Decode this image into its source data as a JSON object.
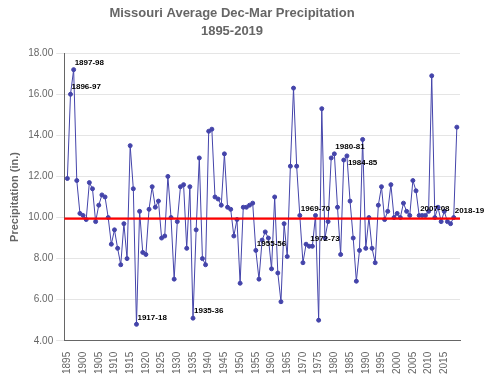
{
  "chart_data": {
    "type": "line",
    "title": "Missouri Average Dec-Mar Precipitation",
    "subtitle": "1895-2019",
    "y_label": "Precipitation (in.)",
    "x": [
      1895,
      1896,
      1897,
      1898,
      1899,
      1900,
      1901,
      1902,
      1903,
      1904,
      1905,
      1906,
      1907,
      1908,
      1909,
      1910,
      1911,
      1912,
      1913,
      1914,
      1915,
      1916,
      1917,
      1918,
      1919,
      1920,
      1921,
      1922,
      1923,
      1924,
      1925,
      1926,
      1927,
      1928,
      1929,
      1930,
      1931,
      1932,
      1933,
      1934,
      1935,
      1936,
      1937,
      1938,
      1939,
      1940,
      1941,
      1942,
      1943,
      1944,
      1945,
      1946,
      1947,
      1948,
      1949,
      1950,
      1951,
      1952,
      1953,
      1954,
      1955,
      1956,
      1957,
      1958,
      1959,
      1960,
      1961,
      1962,
      1963,
      1964,
      1965,
      1966,
      1967,
      1968,
      1969,
      1970,
      1971,
      1972,
      1973,
      1974,
      1975,
      1976,
      1977,
      1978,
      1979,
      1980,
      1981,
      1982,
      1983,
      1984,
      1985,
      1986,
      1987,
      1988,
      1989,
      1990,
      1991,
      1992,
      1993,
      1994,
      1995,
      1996,
      1997,
      1998,
      1999,
      2000,
      2001,
      2002,
      2003,
      2004,
      2005,
      2006,
      2007,
      2008,
      2009,
      2010,
      2011,
      2012,
      2013,
      2014,
      2015,
      2016,
      2017,
      2018,
      2019
    ],
    "series": [
      {
        "color": "#4444AA",
        "marker": "circle",
        "line_style": "solid",
        "values": [
          11.9,
          16.0,
          17.2,
          11.8,
          10.2,
          10.1,
          9.9,
          11.7,
          11.4,
          9.8,
          10.6,
          11.1,
          11.0,
          10.0,
          8.7,
          9.4,
          8.5,
          7.7,
          9.7,
          8.0,
          13.5,
          11.4,
          4.8,
          10.3,
          8.3,
          8.2,
          10.4,
          11.5,
          10.5,
          10.8,
          9.0,
          9.1,
          12.0,
          10.0,
          7.0,
          9.8,
          11.5,
          11.6,
          8.5,
          11.5,
          5.1,
          9.4,
          12.9,
          8.0,
          7.7,
          14.2,
          14.3,
          11.0,
          10.9,
          10.6,
          13.1,
          10.5,
          10.4,
          9.1,
          9.9,
          6.8,
          10.5,
          10.5,
          10.6,
          10.7,
          8.4,
          7.0,
          8.9,
          9.3,
          9.0,
          7.5,
          11.0,
          7.3,
          5.9,
          9.7,
          8.1,
          12.5,
          16.3,
          12.5,
          10.1,
          7.8,
          8.7,
          8.6,
          8.6,
          10.1,
          5.0,
          15.3,
          9.0,
          9.8,
          12.9,
          13.1,
          10.5,
          8.2,
          12.8,
          13.0,
          10.8,
          9.0,
          6.9,
          8.4,
          13.8,
          8.5,
          10.0,
          8.5,
          7.8,
          10.6,
          11.5,
          9.9,
          10.3,
          11.6,
          10.0,
          10.2,
          10.0,
          10.7,
          10.3,
          10.1,
          11.8,
          11.3,
          10.1,
          10.1,
          10.1,
          10.3,
          16.9,
          10.0,
          10.5,
          9.8,
          10.3,
          9.8,
          9.7,
          10.0,
          14.4
        ]
      }
    ],
    "mean_line": {
      "value": 9.95,
      "color": "#FF0000"
    },
    "annotations": [
      {
        "x": 1896,
        "label": "1896-97"
      },
      {
        "x": 1897,
        "label": "1897-98"
      },
      {
        "x": 1917,
        "label": "1917-18"
      },
      {
        "x": 1935,
        "label": "1935-36"
      },
      {
        "x": 1955,
        "label": "1955-56"
      },
      {
        "x": 1969,
        "label": "1969-70"
      },
      {
        "x": 1980,
        "label": "1980-81"
      },
      {
        "x": 1972,
        "label": "1972-73"
      },
      {
        "x": 1984,
        "label": "1984-85"
      },
      {
        "x": 2007,
        "label": "2007-08"
      },
      {
        "x": 2018,
        "label": "2018-19"
      }
    ],
    "xlim": [
      1894,
      2020
    ],
    "xticks": [
      1895,
      1900,
      1905,
      1910,
      1915,
      1920,
      1925,
      1930,
      1935,
      1940,
      1945,
      1950,
      1955,
      1960,
      1965,
      1970,
      1975,
      1980,
      1985,
      1990,
      1995,
      2000,
      2005,
      2010,
      2015
    ],
    "ylim": [
      4.0,
      18.0
    ],
    "yticks": [
      {
        "value": 4.0,
        "label": "4.00"
      },
      {
        "value": 6.0,
        "label": "6.00"
      },
      {
        "value": 8.0,
        "label": "8.00"
      },
      {
        "value": 10.0,
        "label": "10.00"
      },
      {
        "value": 12.0,
        "label": "12.00"
      },
      {
        "value": 14.0,
        "label": "14.00"
      },
      {
        "value": 16.0,
        "label": "16.00"
      },
      {
        "value": 18.0,
        "label": "18.00"
      }
    ],
    "grid": "y"
  }
}
